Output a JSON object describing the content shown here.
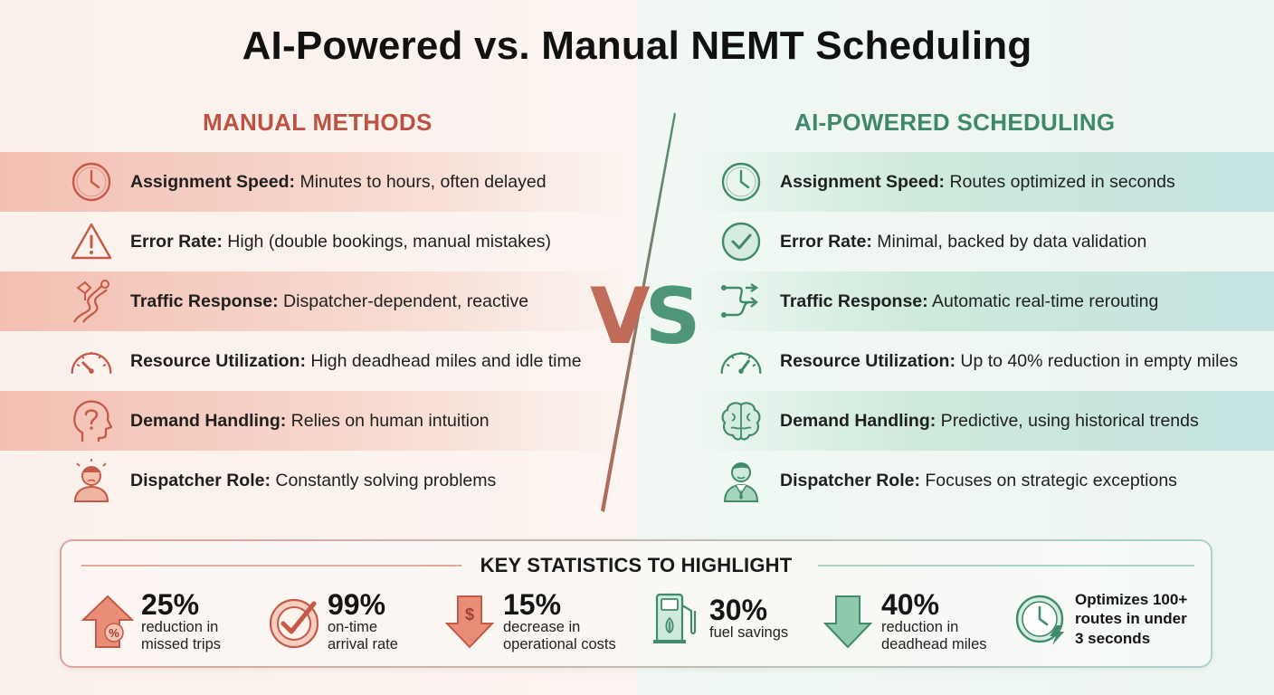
{
  "title": "AI-Powered vs. Manual NEMT Scheduling",
  "manual": {
    "heading": "MANUAL METHODS",
    "items": [
      {
        "label": "Assignment Speed:",
        "value": " Minutes to hours, often delayed",
        "icon": "clock-icon"
      },
      {
        "label": "Error Rate:",
        "value": " High (double bookings, manual mistakes)",
        "icon": "warning-triangle-icon"
      },
      {
        "label": "Traffic Response:",
        "value": " Dispatcher-dependent, reactive",
        "icon": "winding-road-icon"
      },
      {
        "label": "Resource Utilization:",
        "value": " High deadhead miles and idle time",
        "icon": "gauge-low-icon"
      },
      {
        "label": "Demand Handling:",
        "value": " Relies on human intuition",
        "icon": "head-question-icon"
      },
      {
        "label": "Dispatcher Role:",
        "value": " Constantly solving problems",
        "icon": "stressed-person-icon"
      }
    ]
  },
  "vs": {
    "v": "V",
    "s": "S"
  },
  "ai": {
    "heading": "AI-POWERED SCHEDULING",
    "items": [
      {
        "label": "Assignment Speed:",
        "value": " Routes optimized in seconds",
        "icon": "clock-icon"
      },
      {
        "label": "Error Rate:",
        "value": " Minimal, backed by data validation",
        "icon": "check-circle-icon"
      },
      {
        "label": "Traffic Response:",
        "value": " Automatic real-time rerouting",
        "icon": "reroute-arrows-icon"
      },
      {
        "label": "Resource Utilization:",
        "value": " Up to 40% reduction in empty miles",
        "icon": "gauge-high-icon"
      },
      {
        "label": "Demand Handling:",
        "value": " Predictive, using historical trends",
        "icon": "brain-icon"
      },
      {
        "label": "Dispatcher Role:",
        "value": " Focuses on strategic exceptions",
        "icon": "professional-person-icon"
      }
    ]
  },
  "stats": {
    "heading": "KEY STATISTICS TO HIGHLIGHT",
    "items": [
      {
        "value": "25%",
        "desc": "reduction in\nmissed trips",
        "icon": "percent-arrow-up-icon"
      },
      {
        "value": "99%",
        "desc": "on-time\narrival rate",
        "icon": "target-check-icon"
      },
      {
        "value": "15%",
        "desc": "decrease in\noperational costs",
        "icon": "dollar-arrow-down-icon"
      },
      {
        "value": "30%",
        "desc": "fuel savings",
        "icon": "fuel-pump-icon"
      },
      {
        "value": "40%",
        "desc": "reduction in\ndeadhead miles",
        "icon": "arrow-down-icon"
      },
      {
        "value": "",
        "desc": "Optimizes 100+\nroutes in under\n3 seconds",
        "icon": "fast-clock-icon"
      }
    ]
  },
  "colors": {
    "manual_accent": "#bd5142",
    "ai_accent": "#3e8a68"
  }
}
